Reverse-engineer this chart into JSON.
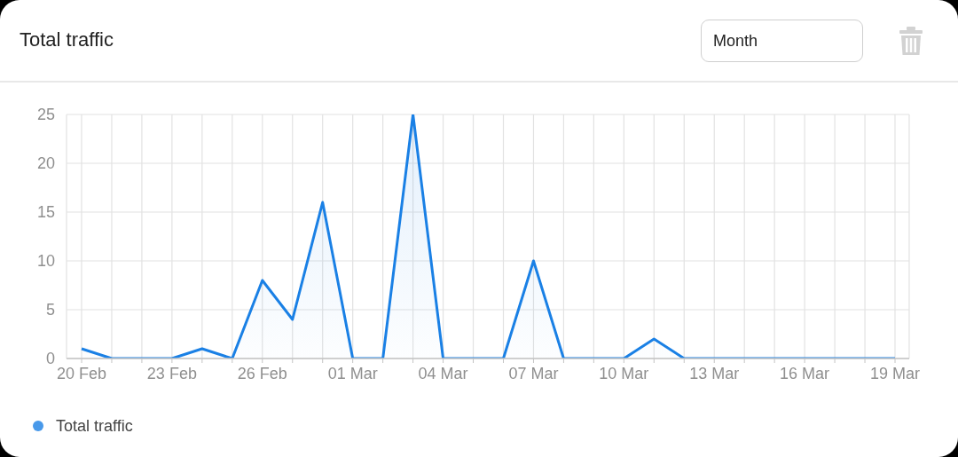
{
  "chart_data": {
    "type": "area",
    "title": "Total traffic",
    "annotations": [
      "Month"
    ],
    "categories": [
      "20 Feb",
      null,
      null,
      "23 Feb",
      null,
      null,
      "26 Feb",
      null,
      null,
      "01 Mar",
      null,
      null,
      "04 Mar",
      null,
      null,
      "07 Mar",
      null,
      null,
      "10 Mar",
      null,
      null,
      "13 Mar",
      null,
      null,
      "16 Mar",
      null,
      null,
      "19 Mar"
    ],
    "series": [
      {
        "name": "Total traffic",
        "color": "#1a80e5",
        "values": [
          1,
          0,
          0,
          0,
          1,
          0,
          8,
          4,
          16,
          0,
          0,
          25,
          0,
          0,
          0,
          10,
          0,
          0,
          0,
          2,
          0,
          0,
          0,
          0,
          0,
          0,
          0,
          0
        ]
      }
    ],
    "ylim": [
      0,
      25
    ],
    "yticks": [
      0,
      5,
      10,
      15,
      20,
      25
    ],
    "grid": true,
    "legend": "bottom left",
    "marker": "none",
    "line_style": "solid"
  }
}
